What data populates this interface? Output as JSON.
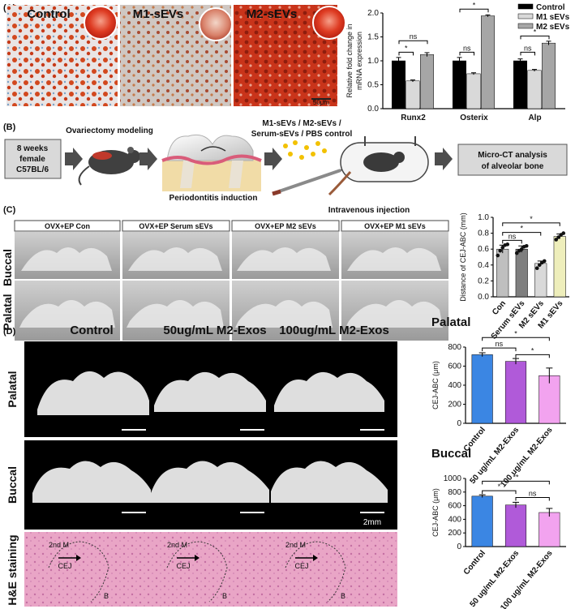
{
  "panel_labels": {
    "a": "(A)",
    "b": "(B)",
    "c": "(C)",
    "d": "(D)"
  },
  "panel_a": {
    "image_titles": [
      "Control",
      "M1-sEVs",
      "M2-sEVs"
    ],
    "scale_text": "50μm"
  },
  "panel_b": {
    "steps": {
      "mouse_box": [
        "8 weeks",
        "female",
        "C57BL/6"
      ],
      "ovx": "Ovariectomy modeling",
      "perio": "Periodontitis  induction",
      "groups": [
        "M1-sEVs / M2-sEVs /",
        "Serum-sEVs / PBS control"
      ],
      "iv": "Intravenous injection",
      "microct": [
        "Micro-CT analysis",
        "of alveolar bone"
      ]
    },
    "colors": {
      "arrow": "#4d4d4d",
      "box": "#d9d9d9",
      "dots": "#f2c100"
    }
  },
  "panel_c": {
    "headers": [
      "OVX+EP Con",
      "OVX+EP Serum sEVs",
      "OVX+EP M2 sEVs",
      "OVX+EP M1 sEVs"
    ],
    "rows": [
      "Buccal",
      "Palatal"
    ]
  },
  "panel_d": {
    "col_titles": [
      "Control",
      "50ug/mL M2-Exos",
      "100ug/mL M2-Exos"
    ],
    "rows": [
      "Palatal",
      "Buccal",
      "H&E staining"
    ],
    "scale_text": "2mm",
    "he_labels": {
      "m": "2nd M",
      "cej": "CEJ",
      "b": "B"
    }
  },
  "chart_data": [
    {
      "type": "bar",
      "id": "a",
      "categories": [
        "Runx2",
        "Osterix",
        "Alp"
      ],
      "series": [
        {
          "name": "Control",
          "color": "#000000",
          "values": [
            1.0,
            1.0,
            1.0
          ],
          "errors": [
            0.07,
            0.07,
            0.04
          ]
        },
        {
          "name": "M1 sEVs",
          "color": "#d9d9d9",
          "values": [
            0.58,
            0.73,
            0.8
          ],
          "errors": [
            0.02,
            0.02,
            0.02
          ]
        },
        {
          "name": "M2 sEVs",
          "color": "#a6a6a6",
          "values": [
            1.13,
            1.94,
            1.37
          ],
          "errors": [
            0.04,
            0.02,
            0.04
          ]
        }
      ],
      "ylabel": [
        "Relative fold change in",
        "mRNA expression"
      ],
      "ylim": [
        0,
        2.0
      ],
      "yticks": [
        "0.0",
        "0.5",
        "1.0",
        "1.5",
        "2.0"
      ],
      "significance": [
        {
          "text": "ns",
          "cat": 0,
          "a": 0,
          "b": 2,
          "level": 1.42
        },
        {
          "text": "*",
          "cat": 0,
          "a": 0,
          "b": 1,
          "level": 1.18
        },
        {
          "text": "*",
          "cat": 1,
          "a": 0,
          "b": 2,
          "level": 2.08
        },
        {
          "text": "ns",
          "cat": 1,
          "a": 0,
          "b": 1,
          "level": 1.18
        },
        {
          "text": "ns",
          "cat": 2,
          "a": 0,
          "b": 1,
          "level": 1.18
        },
        {
          "text": "*",
          "cat": 2,
          "a": 0,
          "b": 2,
          "level": 1.52
        }
      ],
      "legend": "top-right"
    },
    {
      "type": "bar",
      "id": "c",
      "categories": [
        "Con",
        "Serum sEVs",
        "M2 sEVs",
        "M1 sEVs"
      ],
      "values": [
        0.6,
        0.6,
        0.42,
        0.76
      ],
      "errors": [
        0.05,
        0.04,
        0.03,
        0.03
      ],
      "colors": [
        "#bfbfbf",
        "#7f7f7f",
        "#d9d9d9",
        "#eeeebb"
      ],
      "points": [
        [
          0.52,
          0.58,
          0.62,
          0.65,
          0.66
        ],
        [
          0.55,
          0.58,
          0.6,
          0.63,
          0.64
        ],
        [
          0.36,
          0.4,
          0.43,
          0.45
        ],
        [
          0.72,
          0.75,
          0.78,
          0.8
        ]
      ],
      "ylabel": "Distance of CEJ-ABC (mm)",
      "ylim": [
        0,
        1.0
      ],
      "yticks": [
        "0.0",
        "0.2",
        "0.4",
        "0.6",
        "0.8",
        "1.0"
      ],
      "significance": [
        {
          "text": "ns",
          "a": 0,
          "b": 1,
          "level": 0.71
        },
        {
          "text": "*",
          "a": 0,
          "b": 2,
          "level": 0.81
        },
        {
          "text": "*",
          "a": 0,
          "b": 3,
          "level": 0.93
        }
      ]
    },
    {
      "type": "bar",
      "id": "d_palatal",
      "title": "Palatal",
      "categories": [
        "Control",
        "50 ug/mL M2-Exos",
        "100 ug/mL M2-Exos"
      ],
      "values": [
        720,
        650,
        500
      ],
      "errors": [
        20,
        30,
        80
      ],
      "colors": [
        "#3b86e3",
        "#b05ad9",
        "#f2a3ef"
      ],
      "ylabel": "CEJ-ABC (μm)",
      "ylim": [
        0,
        800
      ],
      "yticks": [
        "0",
        "200",
        "400",
        "600",
        "800"
      ],
      "significance": [
        {
          "text": "ns",
          "a": 0,
          "b": 1,
          "level": 790
        },
        {
          "text": "*",
          "a": 1,
          "b": 2,
          "level": 720
        },
        {
          "text": "*",
          "a": 0,
          "b": 2,
          "level": 900
        }
      ]
    },
    {
      "type": "bar",
      "id": "d_buccal",
      "title": "Buccal",
      "categories": [
        "Control",
        "50 ug/mL M2-Exos",
        "100 ug/mL M2-Exos"
      ],
      "values": [
        740,
        610,
        500
      ],
      "errors": [
        20,
        40,
        60
      ],
      "colors": [
        "#3b86e3",
        "#b05ad9",
        "#f2a3ef"
      ],
      "ylabel": "CEJ-ABC (μm)",
      "ylim": [
        0,
        1000
      ],
      "yticks": [
        "0",
        "200",
        "400",
        "600",
        "800",
        "1000"
      ],
      "significance": [
        {
          "text": "*",
          "a": 0,
          "b": 1,
          "level": 820
        },
        {
          "text": "ns",
          "a": 1,
          "b": 2,
          "level": 720
        },
        {
          "text": "**",
          "a": 0,
          "b": 2,
          "level": 960
        }
      ]
    }
  ]
}
